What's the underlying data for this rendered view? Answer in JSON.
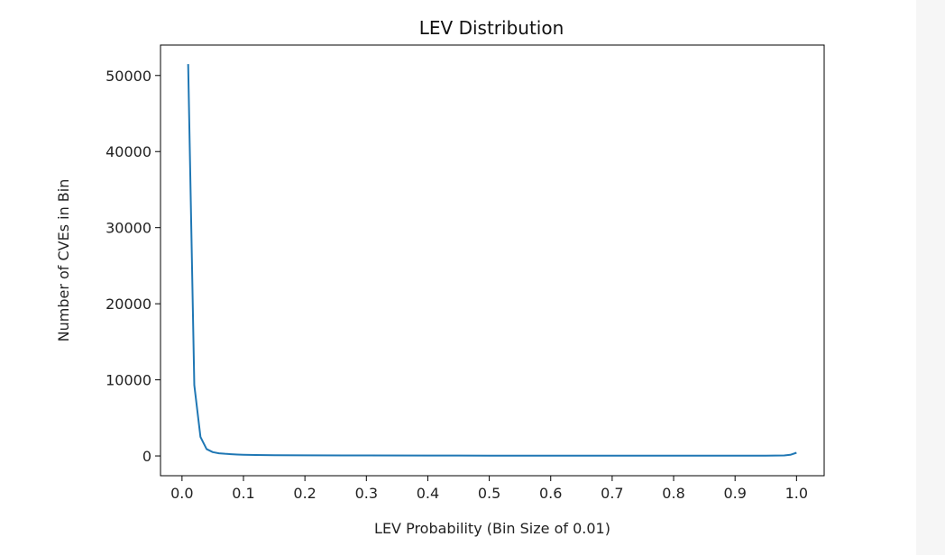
{
  "chart_data": {
    "type": "line",
    "title": "LEV Distribution",
    "xlabel": "LEV Probability (Bin Size of 0.01)",
    "ylabel": "Number of CVEs in Bin",
    "xlim": [
      -0.035,
      1.045
    ],
    "ylim": [
      -2600,
      54000
    ],
    "x_ticks": [
      0.0,
      0.1,
      0.2,
      0.3,
      0.4,
      0.5,
      0.6,
      0.7,
      0.8,
      0.9,
      1.0
    ],
    "x_tick_labels": [
      "0.0",
      "0.1",
      "0.2",
      "0.3",
      "0.4",
      "0.5",
      "0.6",
      "0.7",
      "0.8",
      "0.9",
      "1.0"
    ],
    "y_ticks": [
      0,
      10000,
      20000,
      30000,
      40000,
      50000
    ],
    "y_tick_labels": [
      "0",
      "10000",
      "20000",
      "30000",
      "40000",
      "50000"
    ],
    "grid": false,
    "series": [
      {
        "color": "#1f77b4",
        "x": [
          0.01,
          0.02,
          0.03,
          0.04,
          0.05,
          0.06,
          0.07,
          0.08,
          0.09,
          0.1,
          0.11,
          0.12,
          0.15,
          0.2,
          0.3,
          0.4,
          0.5,
          0.6,
          0.7,
          0.8,
          0.9,
          0.95,
          0.98,
          0.99,
          1.0
        ],
        "y": [
          51500,
          9300,
          2500,
          900,
          500,
          350,
          280,
          230,
          190,
          160,
          140,
          120,
          100,
          80,
          60,
          50,
          40,
          40,
          30,
          30,
          30,
          40,
          60,
          150,
          420
        ]
      }
    ]
  }
}
